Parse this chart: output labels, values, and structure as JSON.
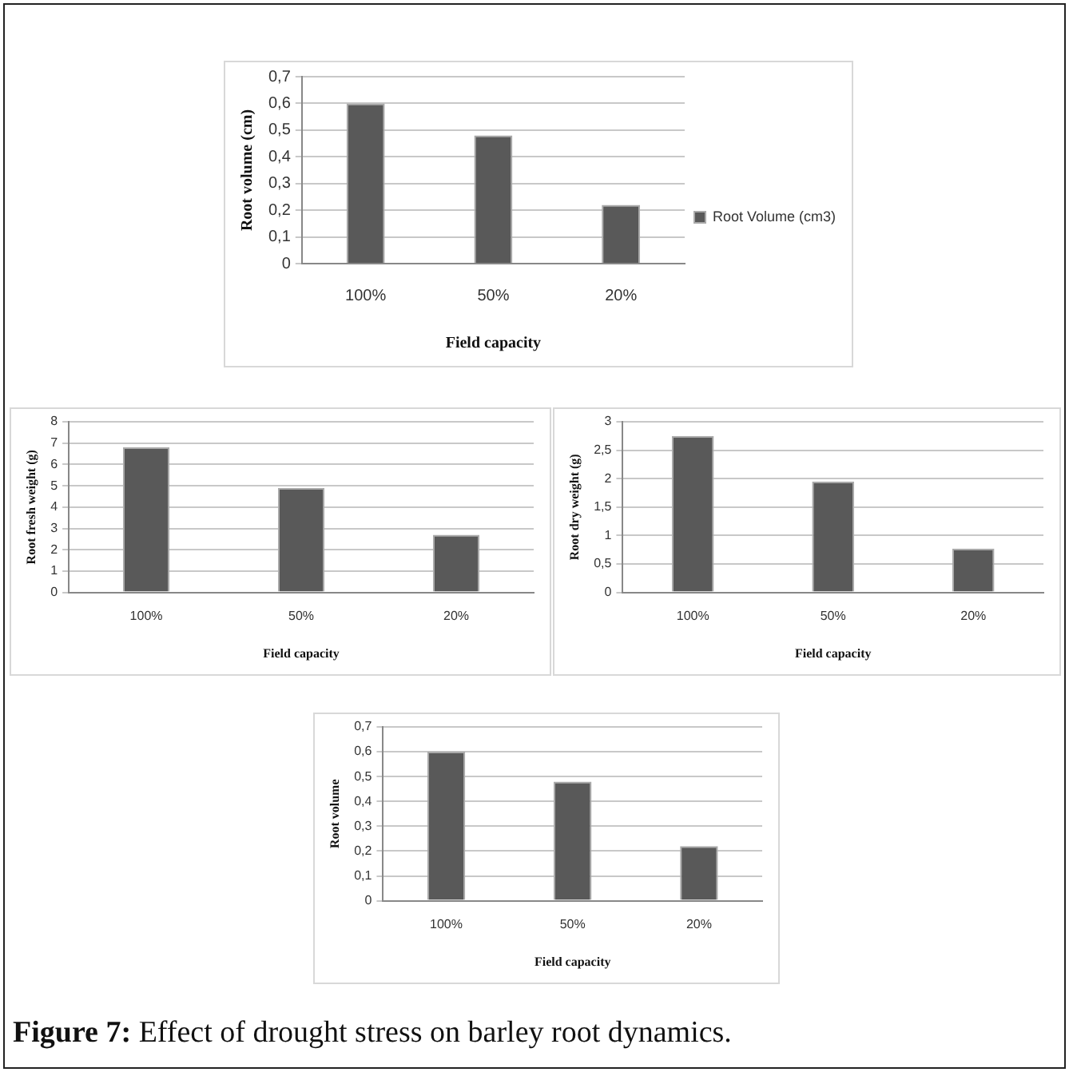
{
  "chart_data": [
    {
      "type": "bar",
      "categories": [
        "100%",
        "50%",
        "20%"
      ],
      "series": [
        {
          "name": "Root Volume (cm3)",
          "color": "#595959",
          "values": [
            0.6,
            0.48,
            0.22
          ]
        }
      ],
      "xlabel": "Field capacity",
      "ylabel": "Root volume (cm)",
      "ylim": [
        0,
        0.7
      ],
      "yticks": [
        0,
        {
          "value": 0.1,
          "label": "0,1"
        },
        {
          "value": 0.2,
          "label": "0,2"
        },
        {
          "value": 0.3,
          "label": "0,3"
        },
        {
          "value": 0.4,
          "label": "0,4"
        },
        {
          "value": 0.5,
          "label": "0,5"
        },
        {
          "value": 0.6,
          "label": "0,6"
        },
        {
          "value": 0.7,
          "label": "0,7"
        }
      ],
      "grid": "y",
      "legend": "right"
    },
    {
      "type": "bar",
      "categories": [
        "100%",
        "50%",
        "20%"
      ],
      "series": [
        {
          "color": "#595959",
          "values": [
            6.8,
            4.9,
            2.7
          ]
        }
      ],
      "xlabel": "Field capacity",
      "ylabel": "Root fresh weight (g)",
      "ylim": [
        0,
        8
      ],
      "yticks": [
        0,
        1,
        2,
        3,
        4,
        5,
        6,
        7,
        8
      ],
      "grid": "y"
    },
    {
      "type": "bar",
      "categories": [
        "100%",
        "50%",
        "20%"
      ],
      "series": [
        {
          "color": "#595959",
          "values": [
            2.75,
            1.95,
            0.77
          ]
        }
      ],
      "xlabel": "Field capacity",
      "ylabel": "Root dry weight (g)",
      "ylim": [
        0,
        3
      ],
      "yticks": [
        0,
        {
          "value": 0.5,
          "label": "0,5"
        },
        1,
        {
          "value": 1.5,
          "label": "1,5"
        },
        2,
        {
          "value": 2.5,
          "label": "2,5"
        },
        3
      ],
      "grid": "y"
    },
    {
      "type": "bar",
      "categories": [
        "100%",
        "50%",
        "20%"
      ],
      "series": [
        {
          "color": "#595959",
          "values": [
            0.6,
            0.48,
            0.22
          ]
        }
      ],
      "xlabel": "Field capacity",
      "ylabel": "Root volume",
      "ylim": [
        0,
        0.7
      ],
      "yticks": [
        0,
        {
          "value": 0.1,
          "label": "0,1"
        },
        {
          "value": 0.2,
          "label": "0,2"
        },
        {
          "value": 0.3,
          "label": "0,3"
        },
        {
          "value": 0.4,
          "label": "0,4"
        },
        {
          "value": 0.5,
          "label": "0,5"
        },
        {
          "value": 0.6,
          "label": "0,6"
        },
        {
          "value": 0.7,
          "label": "0,7"
        }
      ],
      "grid": "y",
      "annotations": [
        "Figure 7: Effect of drought stress on barley root dynamics."
      ]
    }
  ]
}
